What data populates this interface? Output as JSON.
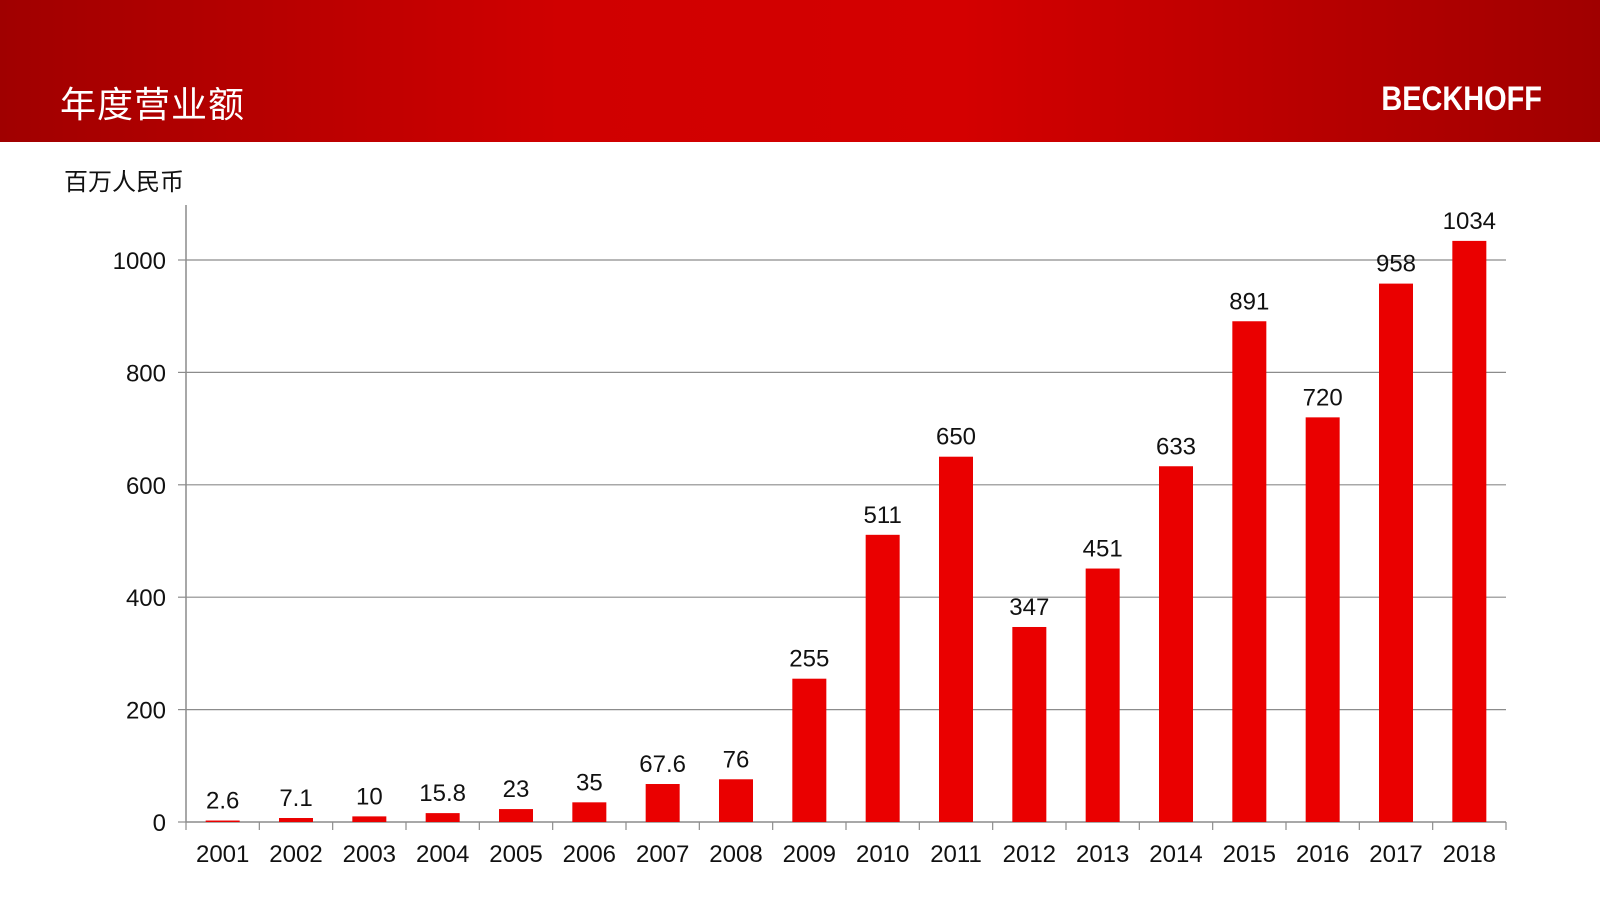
{
  "header": {
    "title": "年度营业额",
    "logo": "BECKHOFF",
    "background_color": "#c00000"
  },
  "chart_data": {
    "type": "bar",
    "ylabel": "百万人民币",
    "categories": [
      "2001",
      "2002",
      "2003",
      "2004",
      "2005",
      "2006",
      "2007",
      "2008",
      "2009",
      "2010",
      "2011",
      "2012",
      "2013",
      "2014",
      "2015",
      "2016",
      "2017",
      "2018"
    ],
    "values": [
      2.6,
      7.1,
      10,
      15.8,
      23,
      35,
      67.6,
      76,
      255,
      511,
      650,
      347,
      451,
      633,
      891,
      720,
      958,
      1034
    ],
    "data_labels": [
      "2.6",
      "7.1",
      "10",
      "15.8",
      "23",
      "35",
      "67.6",
      "76",
      "255",
      "511",
      "650",
      "347",
      "451",
      "633",
      "891",
      "720",
      "958",
      "1034"
    ],
    "yticks": [
      0,
      200,
      400,
      600,
      800,
      1000
    ],
    "ylim": [
      0,
      1100
    ],
    "grid": true,
    "legend": "none",
    "bar_color": "#ea0000"
  }
}
